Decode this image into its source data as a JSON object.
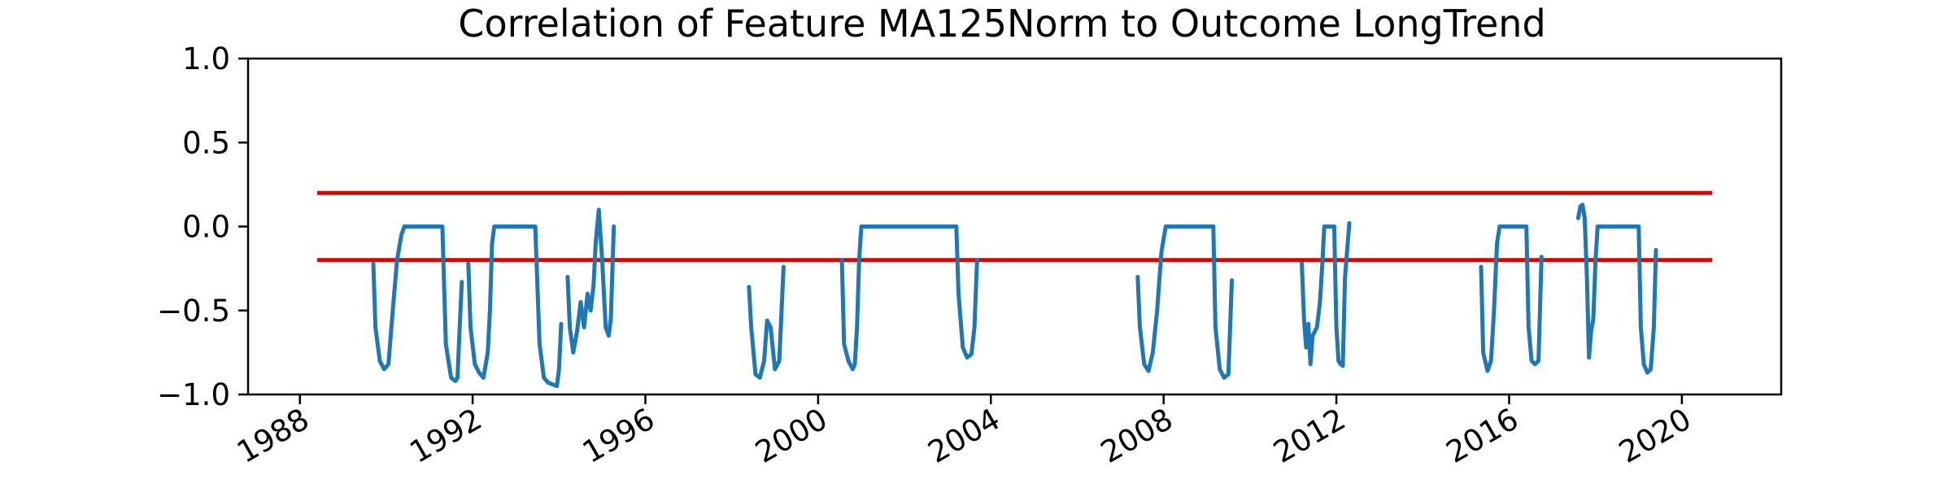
{
  "chart_data": {
    "type": "line",
    "title": "Correlation of Feature MA125Norm to Outcome LongTrend",
    "xlabel": "",
    "ylabel": "",
    "xlim": [
      1986.8,
      2022.3
    ],
    "ylim": [
      -1.0,
      1.0
    ],
    "grid": false,
    "x_ticks": [
      1988,
      1992,
      1996,
      2000,
      2004,
      2008,
      2012,
      2016,
      2020
    ],
    "x_tick_labels": [
      "1988",
      "1992",
      "1996",
      "2000",
      "2004",
      "2008",
      "2012",
      "2016",
      "2020"
    ],
    "y_ticks": [
      -1.0,
      -0.5,
      0.0,
      0.5,
      1.0
    ],
    "y_tick_labels": [
      "−1.0",
      "−0.5",
      "0.0",
      "0.5",
      "1.0"
    ],
    "colors": {
      "series": "#1f77b4",
      "threshold": "#e00000"
    },
    "thresholds": [
      {
        "y": 0.2,
        "x": [
          1988.4,
          2020.7
        ]
      },
      {
        "y": -0.2,
        "x": [
          1988.4,
          2020.7
        ]
      }
    ],
    "segments": [
      {
        "x": [
          1989.7,
          1989.75,
          1989.85,
          1989.95,
          1990.05,
          1990.15,
          1990.25,
          1990.35,
          1990.42,
          1991.3
        ],
        "y": [
          -0.22,
          -0.6,
          -0.8,
          -0.85,
          -0.82,
          -0.5,
          -0.2,
          -0.05,
          0.0,
          0.0
        ]
      },
      {
        "x": [
          1991.3,
          1991.38,
          1991.5,
          1991.6,
          1991.65,
          1991.7,
          1991.75
        ],
        "y": [
          0.0,
          -0.7,
          -0.9,
          -0.92,
          -0.9,
          -0.6,
          -0.33
        ]
      },
      {
        "x": [
          1991.9,
          1991.95,
          1992.05,
          1992.15,
          1992.25,
          1992.35,
          1992.4,
          1992.45,
          1992.5,
          1993.45
        ],
        "y": [
          -0.22,
          -0.6,
          -0.82,
          -0.87,
          -0.9,
          -0.75,
          -0.5,
          -0.1,
          0.0,
          0.0
        ]
      },
      {
        "x": [
          1993.45,
          1993.55,
          1993.65,
          1993.75,
          1993.85,
          1993.95,
          1994.0,
          1994.05
        ],
        "y": [
          0.0,
          -0.7,
          -0.9,
          -0.93,
          -0.94,
          -0.95,
          -0.85,
          -0.58
        ]
      },
      {
        "x": [
          1994.2,
          1994.25,
          1994.33,
          1994.42,
          1994.5,
          1994.58,
          1994.66,
          1994.73,
          1994.8,
          1994.85,
          1994.92,
          1995.0,
          1995.08,
          1995.15,
          1995.2,
          1995.27
        ],
        "y": [
          -0.3,
          -0.6,
          -0.75,
          -0.62,
          -0.45,
          -0.6,
          -0.4,
          -0.5,
          -0.35,
          -0.1,
          0.1,
          -0.2,
          -0.6,
          -0.65,
          -0.55,
          0.0
        ]
      },
      {
        "x": [
          1998.4,
          1998.45,
          1998.55,
          1998.65,
          1998.75,
          1998.82,
          1998.9,
          1999.0,
          1999.1,
          1999.2
        ],
        "y": [
          -0.36,
          -0.6,
          -0.88,
          -0.9,
          -0.8,
          -0.56,
          -0.6,
          -0.85,
          -0.8,
          -0.24
        ]
      },
      {
        "x": [
          2000.55,
          2000.6,
          2000.7,
          2000.8,
          2000.85,
          2000.9,
          2000.95,
          2001.0,
          2003.2
        ],
        "y": [
          -0.2,
          -0.7,
          -0.8,
          -0.85,
          -0.82,
          -0.6,
          -0.2,
          0.0,
          0.0
        ]
      },
      {
        "x": [
          2003.2,
          2003.25,
          2003.35,
          2003.45,
          2003.55,
          2003.62,
          2003.68
        ],
        "y": [
          0.0,
          -0.4,
          -0.72,
          -0.78,
          -0.76,
          -0.6,
          -0.2
        ]
      },
      {
        "x": [
          2007.4,
          2007.45,
          2007.55,
          2007.65,
          2007.75,
          2007.85,
          2007.95,
          2008.05,
          2009.15
        ],
        "y": [
          -0.3,
          -0.6,
          -0.82,
          -0.86,
          -0.75,
          -0.5,
          -0.15,
          0.0,
          0.0
        ]
      },
      {
        "x": [
          2009.15,
          2009.2,
          2009.3,
          2009.4,
          2009.5,
          2009.58
        ],
        "y": [
          0.0,
          -0.6,
          -0.85,
          -0.9,
          -0.88,
          -0.32
        ]
      },
      {
        "x": [
          2011.2,
          2011.25,
          2011.3,
          2011.35,
          2011.4,
          2011.45,
          2011.55,
          2011.62,
          2011.68,
          2011.72,
          2011.75,
          2011.95
        ],
        "y": [
          -0.22,
          -0.55,
          -0.72,
          -0.58,
          -0.82,
          -0.65,
          -0.6,
          -0.45,
          -0.2,
          0.0,
          0.0,
          0.0
        ]
      },
      {
        "x": [
          2011.95,
          2012.0,
          2012.05,
          2012.1,
          2012.15,
          2012.2,
          2012.3
        ],
        "y": [
          0.0,
          -0.6,
          -0.8,
          -0.82,
          -0.83,
          -0.3,
          0.02
        ]
      },
      {
        "x": [
          2015.35,
          2015.4,
          2015.5,
          2015.58,
          2015.65,
          2015.72,
          2015.78,
          2016.4
        ],
        "y": [
          -0.24,
          -0.75,
          -0.86,
          -0.8,
          -0.5,
          -0.1,
          0.0,
          0.0
        ]
      },
      {
        "x": [
          2016.4,
          2016.45,
          2016.52,
          2016.6,
          2016.68,
          2016.75
        ],
        "y": [
          0.0,
          -0.6,
          -0.8,
          -0.82,
          -0.8,
          -0.18
        ]
      },
      {
        "x": [
          2017.6,
          2017.65,
          2017.7,
          2017.75,
          2017.8,
          2017.85,
          2017.9,
          2017.95,
          2018.0,
          2018.05,
          2018.08,
          2018.1,
          2019.0
        ],
        "y": [
          0.05,
          0.12,
          0.13,
          0.05,
          -0.3,
          -0.78,
          -0.62,
          -0.55,
          -0.2,
          0.0,
          0.0,
          0.0,
          0.0
        ]
      },
      {
        "x": [
          2019.0,
          2019.05,
          2019.12,
          2019.2,
          2019.28,
          2019.35,
          2019.4
        ],
        "y": [
          0.0,
          -0.6,
          -0.82,
          -0.87,
          -0.85,
          -0.6,
          -0.14
        ]
      }
    ]
  }
}
